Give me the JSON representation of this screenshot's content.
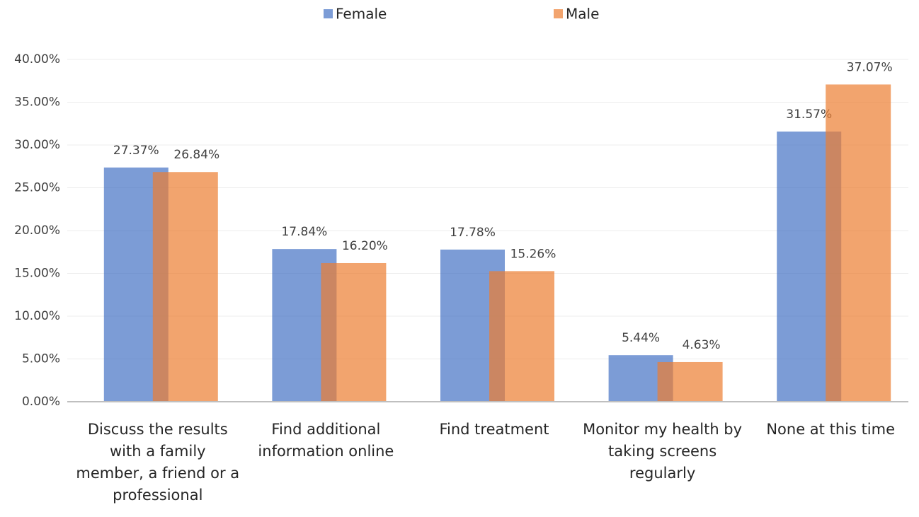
{
  "chart_data": {
    "type": "bar",
    "categories": [
      "Discuss the results with a family member, a friend or a professional",
      "Find additional information online",
      "Find treatment",
      "Monitor my health by taking screens regularly",
      "None at this time"
    ],
    "series": [
      {
        "name": "Female",
        "color": "#4472c4",
        "values": [
          27.37,
          17.84,
          17.78,
          5.44,
          31.57
        ],
        "value_labels": [
          "27.37%",
          "17.84%",
          "17.78%",
          "5.44%",
          "31.57%"
        ]
      },
      {
        "name": "Male",
        "color": "#ed7d31",
        "values": [
          26.84,
          16.2,
          15.26,
          4.63,
          37.07
        ],
        "value_labels": [
          "26.84%",
          "16.20%",
          "15.26%",
          "4.63%",
          "37.07%"
        ]
      }
    ],
    "ylim": [
      0,
      40
    ],
    "yticks": [
      {
        "value": 0,
        "label": "0.00%"
      },
      {
        "value": 5,
        "label": "5.00%"
      },
      {
        "value": 10,
        "label": "10.00%"
      },
      {
        "value": 15,
        "label": "15.00%"
      },
      {
        "value": 20,
        "label": "20.00%"
      },
      {
        "value": 25,
        "label": "25.00%"
      },
      {
        "value": 30,
        "label": "30.00%"
      },
      {
        "value": 35,
        "label": "35.00%"
      },
      {
        "value": 40,
        "label": "40.00%"
      }
    ],
    "grid": true,
    "legend": "top"
  }
}
